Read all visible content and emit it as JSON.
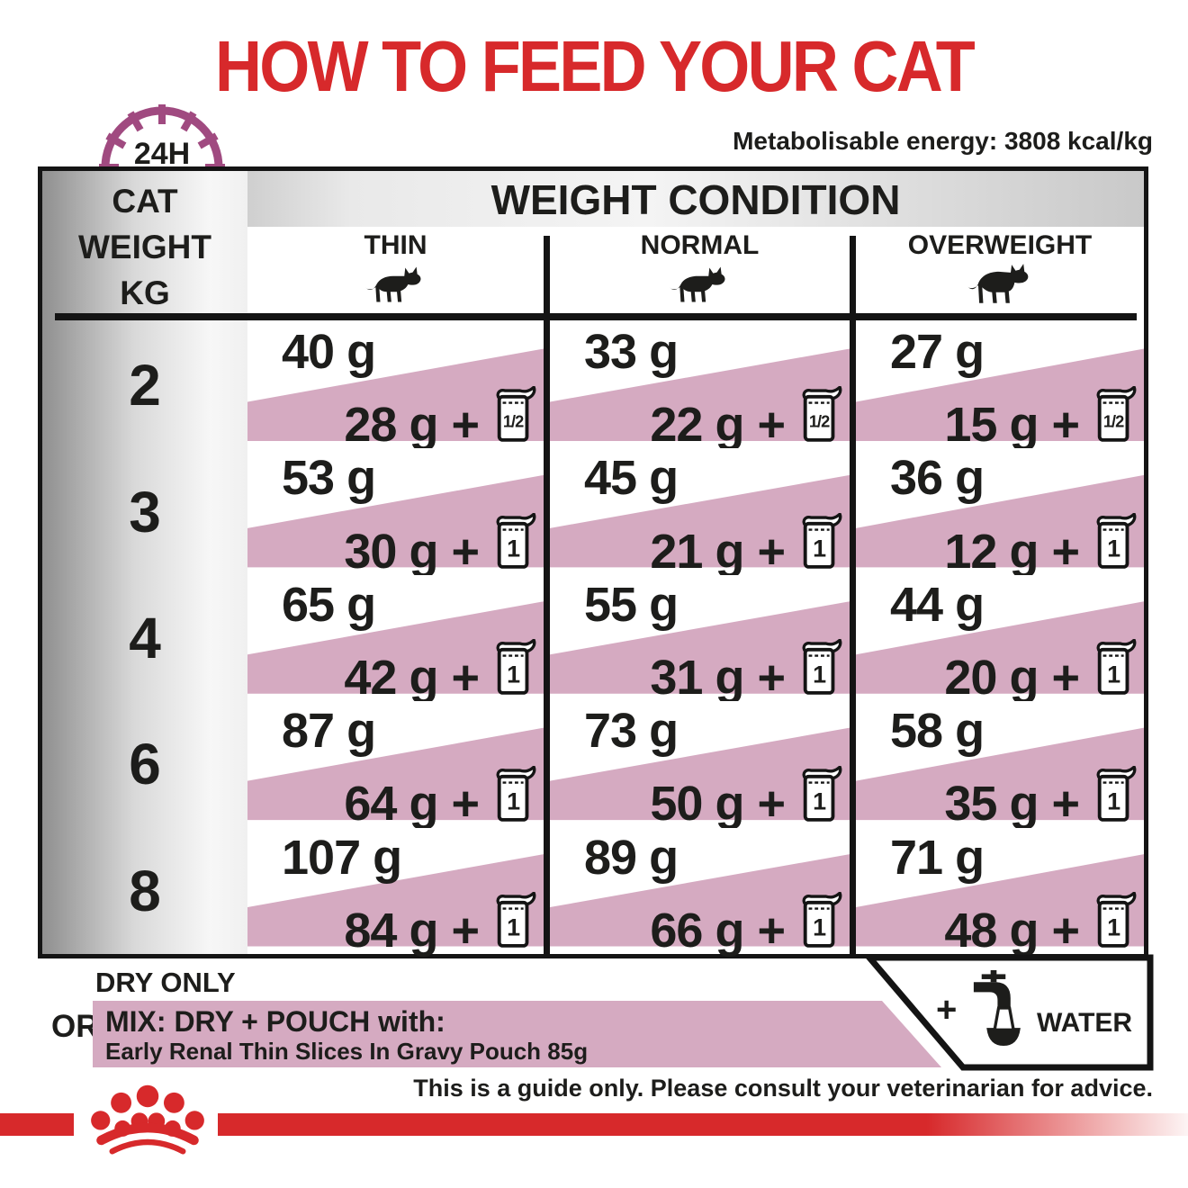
{
  "page": {
    "title": "HOW TO FEED YOUR CAT",
    "energy_note": "Metabolisable energy: 3808 kcal/kg"
  },
  "clock": {
    "label": "24H"
  },
  "symbols": {
    "plus": "+"
  },
  "table": {
    "weight_header_lines": [
      "CAT",
      "WEIGHT",
      "KG"
    ],
    "condition_header": "WEIGHT CONDITION",
    "columns": [
      "THIN",
      "NORMAL",
      "OVERWEIGHT"
    ],
    "rows": [
      {
        "kg": "2",
        "cells": [
          {
            "dry": "40 g",
            "mix": "28 g",
            "pouch": "1/2"
          },
          {
            "dry": "33 g",
            "mix": "22 g",
            "pouch": "1/2"
          },
          {
            "dry": "27 g",
            "mix": "15 g",
            "pouch": "1/2"
          }
        ]
      },
      {
        "kg": "3",
        "cells": [
          {
            "dry": "53 g",
            "mix": "30 g",
            "pouch": "1"
          },
          {
            "dry": "45 g",
            "mix": "21 g",
            "pouch": "1"
          },
          {
            "dry": "36 g",
            "mix": "12 g",
            "pouch": "1"
          }
        ]
      },
      {
        "kg": "4",
        "cells": [
          {
            "dry": "65 g",
            "mix": "42 g",
            "pouch": "1"
          },
          {
            "dry": "55 g",
            "mix": "31 g",
            "pouch": "1"
          },
          {
            "dry": "44 g",
            "mix": "20 g",
            "pouch": "1"
          }
        ]
      },
      {
        "kg": "6",
        "cells": [
          {
            "dry": "87 g",
            "mix": "64 g",
            "pouch": "1"
          },
          {
            "dry": "73 g",
            "mix": "50 g",
            "pouch": "1"
          },
          {
            "dry": "58 g",
            "mix": "35 g",
            "pouch": "1"
          }
        ]
      },
      {
        "kg": "8",
        "cells": [
          {
            "dry": "107 g",
            "mix": "84 g",
            "pouch": "1"
          },
          {
            "dry": "89 g",
            "mix": "66 g",
            "pouch": "1"
          },
          {
            "dry": "71 g",
            "mix": "48 g",
            "pouch": "1"
          }
        ]
      }
    ]
  },
  "legend": {
    "dry_label": "DRY ONLY",
    "or_label": "OR",
    "mix_title": "MIX: DRY + POUCH with:",
    "mix_subtitle": "Early Renal Thin Slices In Gravy Pouch 85g",
    "water_label": "WATER"
  },
  "footer": {
    "disclaimer": "This is a guide only. Please consult your veterinarian for advice."
  },
  "colors": {
    "brand_red": "#d7292b",
    "band_pink": "#d5aac1",
    "clock_purple": "#a04a80",
    "line_black": "#141414"
  }
}
